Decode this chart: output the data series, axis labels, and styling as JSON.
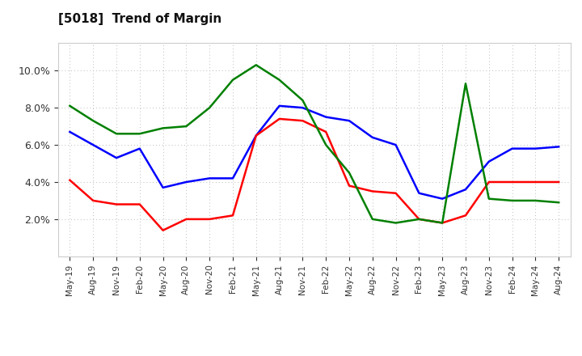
{
  "title": "[5018]  Trend of Margin",
  "x_labels": [
    "May-19",
    "Aug-19",
    "Nov-19",
    "Feb-20",
    "May-20",
    "Aug-20",
    "Nov-20",
    "Feb-21",
    "May-21",
    "Aug-21",
    "Nov-21",
    "Feb-22",
    "May-22",
    "Aug-22",
    "Nov-22",
    "Feb-23",
    "May-23",
    "Aug-23",
    "Nov-23",
    "Feb-24",
    "May-24",
    "Aug-24"
  ],
  "ordinary_income": [
    6.7,
    6.0,
    5.3,
    5.8,
    3.7,
    4.0,
    4.2,
    4.2,
    6.5,
    8.1,
    8.0,
    7.5,
    7.3,
    6.4,
    6.0,
    3.4,
    3.1,
    3.6,
    5.1,
    5.8,
    5.8,
    5.9
  ],
  "net_income": [
    4.1,
    3.0,
    2.8,
    2.8,
    1.4,
    2.0,
    2.0,
    2.2,
    6.5,
    7.4,
    7.3,
    6.7,
    3.8,
    3.5,
    3.4,
    2.0,
    1.8,
    2.2,
    4.0,
    4.0,
    4.0,
    4.0
  ],
  "operating_cashflow": [
    8.1,
    7.3,
    6.6,
    6.6,
    6.9,
    7.0,
    8.0,
    9.5,
    10.3,
    9.5,
    8.4,
    6.0,
    4.5,
    2.0,
    1.8,
    2.0,
    1.8,
    9.3,
    3.1,
    3.0,
    3.0,
    2.9
  ],
  "ylim": [
    0.0,
    11.5
  ],
  "yticks": [
    2.0,
    4.0,
    6.0,
    8.0,
    10.0
  ],
  "colors": {
    "ordinary_income": "#0000FF",
    "net_income": "#FF0000",
    "operating_cashflow": "#008000"
  },
  "background_color": "#FFFFFF",
  "grid_color": "#BBBBBB"
}
